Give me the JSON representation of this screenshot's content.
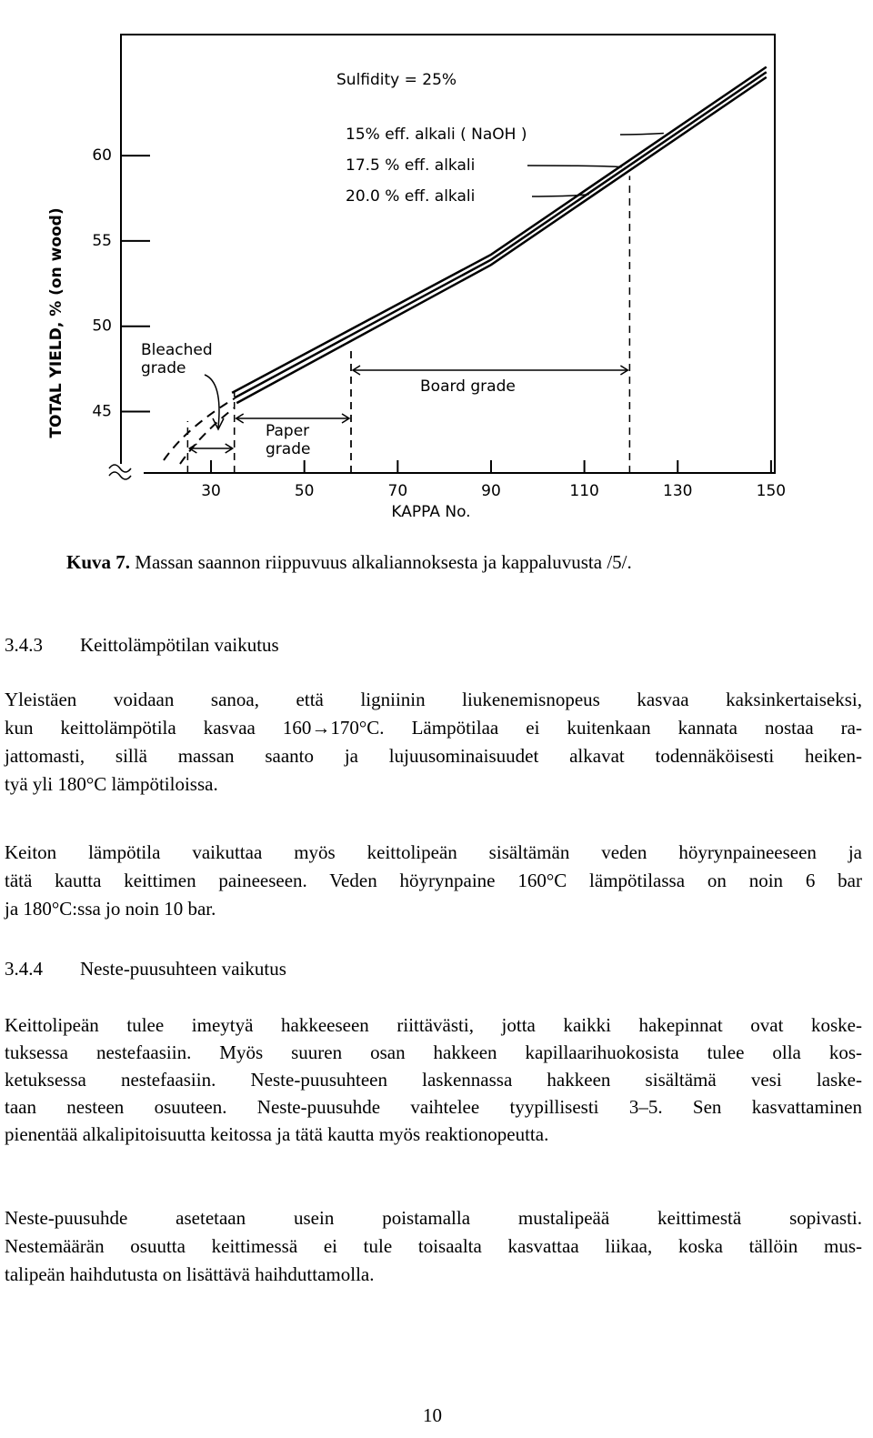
{
  "chart_data": {
    "type": "line",
    "xlabel": "KAPPA No.",
    "ylabel": "TOTAL YIELD, % (on wood)",
    "annotation": "Sulfidity = 25%",
    "xlim": [
      10.7,
      150.8
    ],
    "ylim": [
      41.4,
      67.1
    ],
    "xticks": [
      30,
      50,
      70,
      90,
      110,
      130,
      150
    ],
    "yticks": [
      45,
      50,
      55,
      60
    ],
    "series": [
      {
        "name": "15% eff. alkali ( NaOH )",
        "color": "#000000",
        "x": [
          34.5,
          90,
          149
        ],
        "values": [
          46.1,
          54.2,
          65.2
        ]
      },
      {
        "name": "17.5 % eff. alkali",
        "color": "#000000",
        "x": [
          35,
          90,
          149
        ],
        "values": [
          45.8,
          53.9,
          64.9
        ]
      },
      {
        "name": "20.0 % eff. alkali",
        "color": "#000000",
        "x": [
          35.5,
          90,
          149
        ],
        "values": [
          45.5,
          53.6,
          64.6
        ]
      }
    ],
    "regions": [
      {
        "label": [
          "Bleached",
          "grade"
        ],
        "from": 25,
        "to": 35
      },
      {
        "label": [
          "Paper",
          "grade"
        ],
        "from": 35,
        "to": 60
      },
      {
        "label": [
          "Board grade"
        ],
        "from": 60,
        "to": 119.7
      }
    ]
  },
  "caption": {
    "label": "Kuva 7.",
    "text": "Massan saannon riippuvuus alkaliannoksesta ja kappaluvusta /5/."
  },
  "sections": [
    {
      "number": "3.4.3",
      "title": "Keittolämpötilan vaikutus",
      "paragraphs": [
        [
          "Yleistäen voidaan sanoa, että ligniinin liukenemisnopeus kasvaa kaksinkertaiseksi,",
          "kun keittolämpötila kasvaa 160→170°C. Lämpötilaa ei kuitenkaan kannata nostaa ra-",
          "jattomasti, sillä massan saanto ja lujuusominaisuudet alkavat todennäköisesti heiken-",
          "tyä yli 180°C lämpötiloissa."
        ],
        [
          "Keiton lämpötila vaikuttaa myös keittolipeän sisältämän veden höyrynpaineeseen ja",
          "tätä kautta keittimen paineeseen. Veden höyrynpaine 160°C lämpötilassa on noin 6 bar",
          "ja 180°C:ssa jo noin 10 bar."
        ]
      ]
    },
    {
      "number": "3.4.4",
      "title": "Neste-puusuhteen vaikutus",
      "paragraphs": [
        [
          "Keittolipeän tulee imeytyä hakkeeseen riittävästi, jotta kaikki hakepinnat ovat koske-",
          "tuksessa nestefaasiin. Myös suuren osan hakkeen kapillaarihuokosista tulee olla kos-",
          "ketuksessa nestefaasiin. Neste-puusuhteen laskennassa hakkeen sisältämä vesi laske-",
          "taan nesteen osuuteen. Neste-puusuhde vaihtelee tyypillisesti 3–5. Sen kasvattaminen",
          "pienentää alkalipitoisuutta keitossa ja tätä kautta myös reaktionopeutta."
        ],
        [
          "Neste-puusuhde asetetaan usein poistamalla mustalipeää keittimestä sopivasti.",
          "Nestemäärän osuutta keittimessä ei tule toisaalta kasvattaa liikaa, koska tällöin mus-",
          "talipeän haihdutusta on lisättävä haihduttamolla."
        ]
      ]
    }
  ],
  "page_number": "10"
}
